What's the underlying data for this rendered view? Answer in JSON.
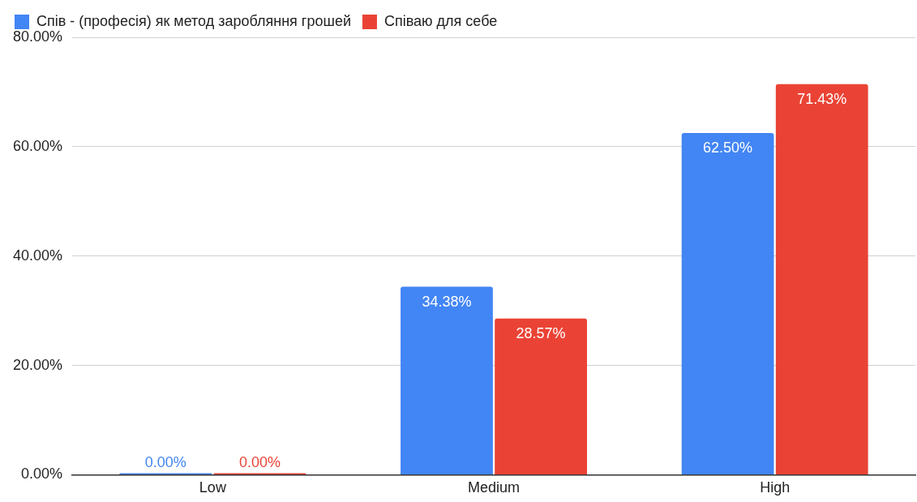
{
  "chart_data": {
    "type": "bar",
    "categories": [
      "Low",
      "Medium",
      "High"
    ],
    "series": [
      {
        "name": "Спів - (професія) як метод заробляння грошей",
        "color": "#4285f4",
        "values": [
          0,
          34.38,
          62.5
        ],
        "value_labels": [
          "0.00%",
          "34.38%",
          "62.50%"
        ]
      },
      {
        "name": "Співаю для себе",
        "color": "#ea4335",
        "values": [
          0,
          28.57,
          71.43
        ],
        "value_labels": [
          "0.00%",
          "28.57%",
          "71.43%"
        ]
      }
    ],
    "ylim": [
      0,
      80
    ],
    "yticks": [
      {
        "value": 0,
        "label": "0.00%"
      },
      {
        "value": 20,
        "label": "20.00%"
      },
      {
        "value": 40,
        "label": "40.00%"
      },
      {
        "value": 60,
        "label": "60.00%"
      },
      {
        "value": 80,
        "label": "80.00%"
      }
    ],
    "grid": "y",
    "legend": "top"
  }
}
